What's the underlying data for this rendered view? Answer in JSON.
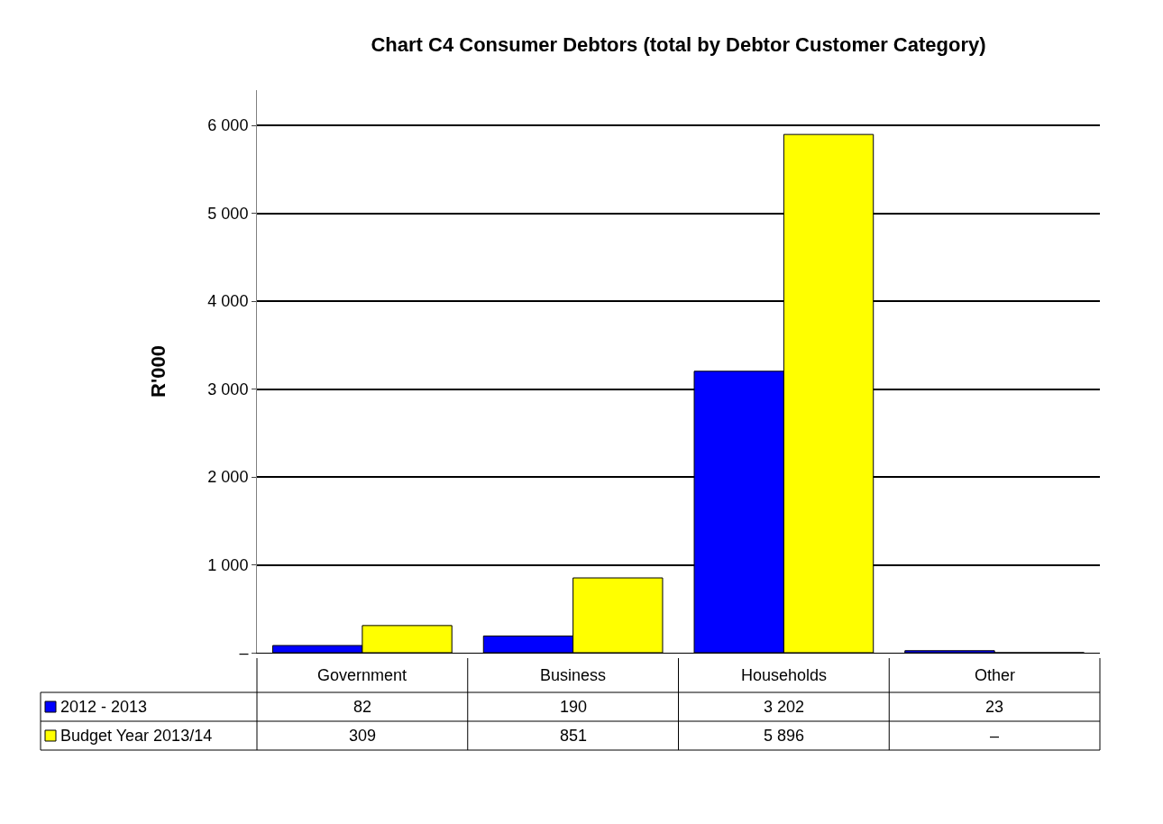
{
  "chart_data": {
    "type": "bar",
    "title": "Chart C4 Consumer Debtors (total by Debtor Customer Category)",
    "ylabel": "R'000",
    "categories": [
      "Government",
      "Business",
      "Households",
      "Other"
    ],
    "series": [
      {
        "name": "2012 - 2013",
        "color": "#0000ff",
        "values": [
          82,
          190,
          3202,
          23
        ],
        "value_labels": [
          "82",
          "190",
          "3 202",
          "23"
        ]
      },
      {
        "name": "Budget Year 2013/14",
        "color": "#ffff00",
        "values": [
          309,
          851,
          5896,
          0
        ],
        "value_labels": [
          "309",
          "851",
          "5 896",
          "–"
        ]
      }
    ],
    "ylim": [
      0,
      6400
    ],
    "yticks": [
      {
        "value": 0,
        "label": "–"
      },
      {
        "value": 1000,
        "label": "1 000"
      },
      {
        "value": 2000,
        "label": "2 000"
      },
      {
        "value": 3000,
        "label": "3 000"
      },
      {
        "value": 4000,
        "label": "4 000"
      },
      {
        "value": 5000,
        "label": "5 000"
      },
      {
        "value": 6000,
        "label": "6 000"
      }
    ],
    "grid": "y",
    "data_labels": true,
    "legend": "bottom left"
  }
}
